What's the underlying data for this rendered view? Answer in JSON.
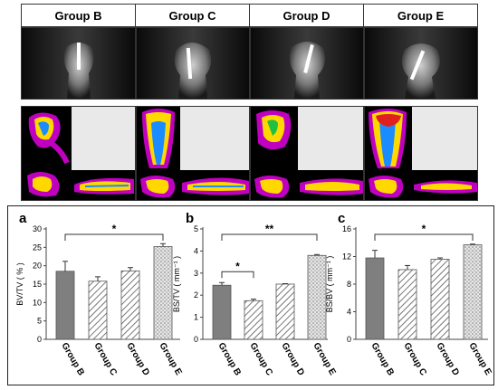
{
  "groups": [
    "Group B",
    "Group C",
    "Group D",
    "Group E"
  ],
  "colors": {
    "dark_bar": "#7f7f7f",
    "border": "#222222"
  },
  "chart_data": [
    {
      "type": "bar",
      "panel": "a",
      "categories": [
        "Group B",
        "Group C",
        "Group D",
        "Group E"
      ],
      "values": [
        18.5,
        15.8,
        18.6,
        25.2
      ],
      "errors": [
        2.7,
        1.2,
        0.9,
        0.8
      ],
      "patterns": [
        "solid",
        "diag",
        "diag",
        "dots"
      ],
      "ylabel": "BV/TV ( % )",
      "ylim": [
        0,
        30
      ],
      "yticks": [
        0,
        5,
        10,
        15,
        20,
        25,
        30
      ],
      "significance": [
        {
          "from": 0,
          "to": 3,
          "label": "*"
        }
      ]
    },
    {
      "type": "bar",
      "panel": "b",
      "categories": [
        "Group B",
        "Group C",
        "Group D",
        "Group E"
      ],
      "values": [
        2.45,
        1.75,
        2.5,
        3.8
      ],
      "errors": [
        0.12,
        0.07,
        0.02,
        0.04
      ],
      "patterns": [
        "solid",
        "diag",
        "diag",
        "dots"
      ],
      "ylabel": "BS/TV ( mm⁻¹ )",
      "ylim": [
        0,
        5
      ],
      "yticks": [
        0,
        1,
        2,
        3,
        4,
        5
      ],
      "significance": [
        {
          "from": 0,
          "to": 1,
          "label": "*"
        },
        {
          "from": 0,
          "to": 3,
          "label": "**"
        }
      ]
    },
    {
      "type": "bar",
      "panel": "c",
      "categories": [
        "Group B",
        "Group C",
        "Group D",
        "Group E"
      ],
      "values": [
        11.8,
        10.1,
        11.6,
        13.7
      ],
      "errors": [
        1.1,
        0.6,
        0.2,
        0.1
      ],
      "patterns": [
        "solid",
        "diag",
        "diag",
        "dots"
      ],
      "ylabel": "BS/BV ( mm⁻¹ )",
      "ylim": [
        0,
        16
      ],
      "yticks": [
        0,
        4,
        8,
        12,
        16
      ],
      "significance": [
        {
          "from": 0,
          "to": 3,
          "label": "*"
        }
      ]
    }
  ]
}
